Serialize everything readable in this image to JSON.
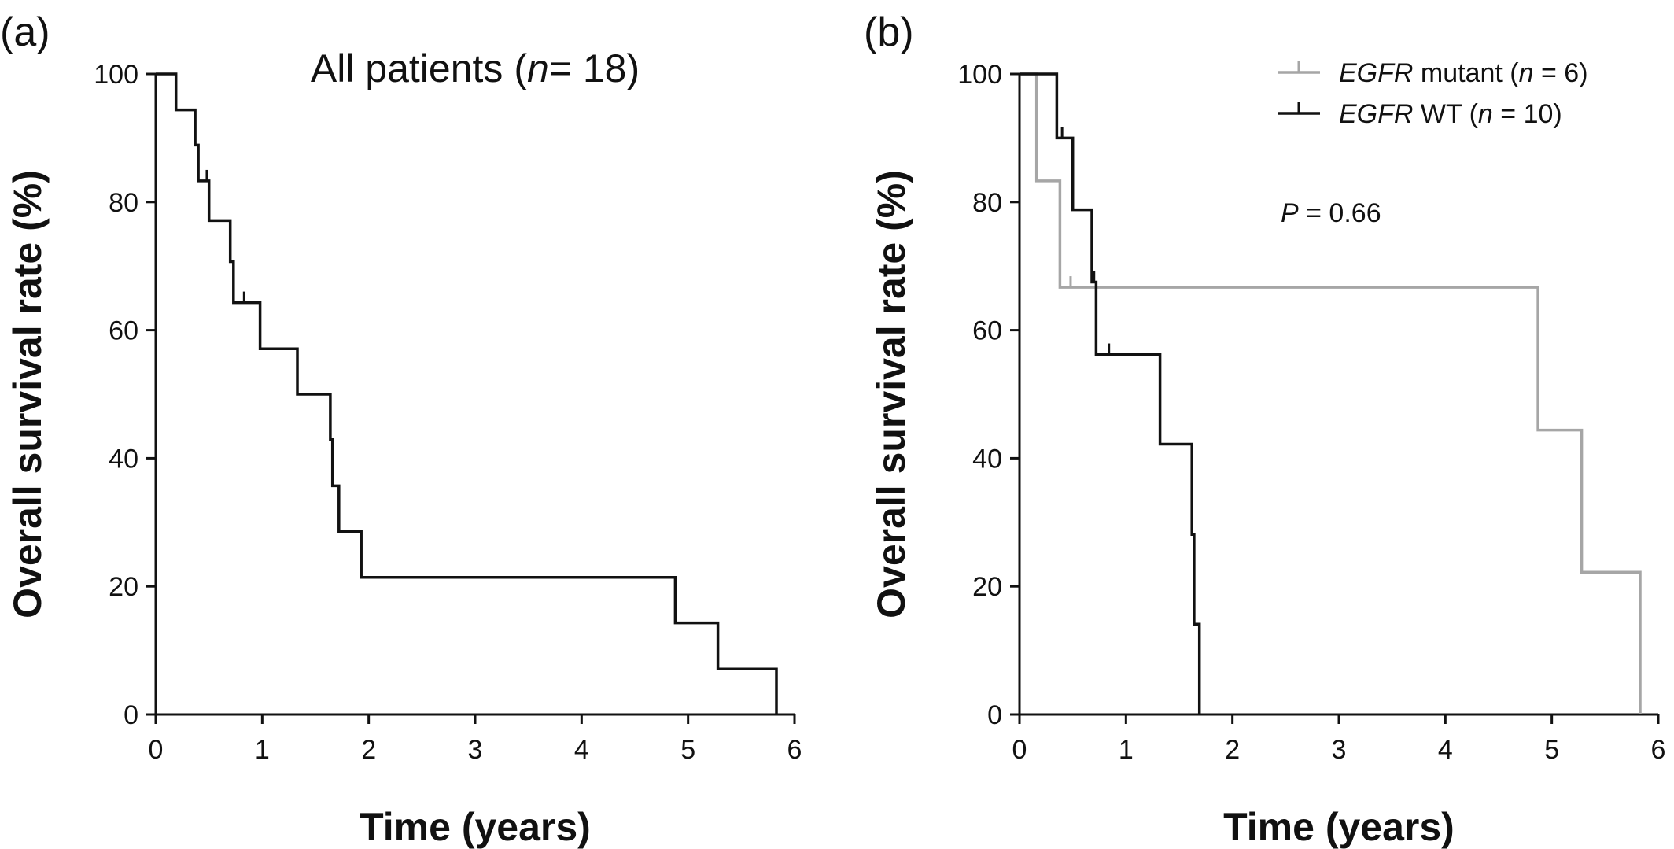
{
  "chart_data": [
    {
      "type": "line",
      "step": true,
      "panel_label": "(a)",
      "annotation": {
        "prefix": "All patients (",
        "italic": "n",
        "suffix": "= 18)"
      },
      "xlabel": "Time (years)",
      "ylabel": "Overall survival rate (%)",
      "xlim": [
        0,
        6
      ],
      "ylim": [
        0,
        100
      ],
      "xticks": [
        0,
        1,
        2,
        3,
        4,
        5,
        6
      ],
      "yticks": [
        0,
        20,
        40,
        60,
        80,
        100
      ],
      "grid": false,
      "series": [
        {
          "color": "#111111",
          "points": [
            [
              0,
              100
            ],
            [
              0.19,
              100
            ],
            [
              0.19,
              94.4
            ],
            [
              0.37,
              94.4
            ],
            [
              0.37,
              88.9
            ],
            [
              0.4,
              88.9
            ],
            [
              0.4,
              83.3
            ],
            [
              0.5,
              83.3
            ],
            [
              0.5,
              77.1
            ],
            [
              0.7,
              77.1
            ],
            [
              0.7,
              70.7
            ],
            [
              0.73,
              70.7
            ],
            [
              0.73,
              64.3
            ],
            [
              0.98,
              64.3
            ],
            [
              0.98,
              57.1
            ],
            [
              1.33,
              57.1
            ],
            [
              1.33,
              50.0
            ],
            [
              1.64,
              50.0
            ],
            [
              1.64,
              42.9
            ],
            [
              1.66,
              42.9
            ],
            [
              1.66,
              35.7
            ],
            [
              1.72,
              35.7
            ],
            [
              1.72,
              28.6
            ],
            [
              1.93,
              28.6
            ],
            [
              1.93,
              21.4
            ],
            [
              4.88,
              21.4
            ],
            [
              4.88,
              14.3
            ],
            [
              5.28,
              14.3
            ],
            [
              5.28,
              7.1
            ],
            [
              5.83,
              7.1
            ],
            [
              5.83,
              0
            ]
          ],
          "censored": [
            [
              0.48,
              83.3
            ],
            [
              0.83,
              64.3
            ]
          ]
        }
      ]
    },
    {
      "type": "line",
      "step": true,
      "panel_label": "(b)",
      "annotation": {
        "prefix": "",
        "italic": "P",
        "suffix": " = 0.66"
      },
      "xlabel": "Time (years)",
      "ylabel": "Overall survival rate (%)",
      "xlim": [
        0,
        6
      ],
      "ylim": [
        0,
        100
      ],
      "xticks": [
        0,
        1,
        2,
        3,
        4,
        5,
        6
      ],
      "yticks": [
        0,
        20,
        40,
        60,
        80,
        100
      ],
      "grid": false,
      "legend_position": "top-right",
      "series": [
        {
          "name": "EGFR mutant (n = 6)",
          "legend": {
            "italic": "EGFR",
            "rest": " mutant (",
            "n": "n",
            "tail": " = 6)"
          },
          "color": "#a6a6a6",
          "points": [
            [
              0,
              100
            ],
            [
              0.16,
              100
            ],
            [
              0.16,
              83.3
            ],
            [
              0.38,
              83.3
            ],
            [
              0.38,
              66.7
            ],
            [
              4.87,
              66.7
            ],
            [
              4.87,
              44.4
            ],
            [
              5.28,
              44.4
            ],
            [
              5.28,
              22.2
            ],
            [
              5.83,
              22.2
            ],
            [
              5.83,
              0
            ]
          ],
          "censored": [
            [
              0.48,
              66.7
            ]
          ]
        },
        {
          "name": "EGFR WT (n = 10)",
          "legend": {
            "italic": "EGFR",
            "rest": " WT (",
            "n": "n",
            "tail": " = 10)"
          },
          "color": "#111111",
          "points": [
            [
              0,
              100
            ],
            [
              0.35,
              100
            ],
            [
              0.35,
              90.0
            ],
            [
              0.5,
              90.0
            ],
            [
              0.5,
              78.8
            ],
            [
              0.68,
              78.8
            ],
            [
              0.68,
              67.5
            ],
            [
              0.72,
              67.5
            ],
            [
              0.72,
              56.2
            ],
            [
              1.32,
              56.2
            ],
            [
              1.32,
              42.2
            ],
            [
              1.62,
              42.2
            ],
            [
              1.62,
              28.1
            ],
            [
              1.64,
              28.1
            ],
            [
              1.64,
              14.1
            ],
            [
              1.69,
              14.1
            ],
            [
              1.69,
              0
            ]
          ],
          "censored": [
            [
              0.4,
              90.0
            ],
            [
              0.7,
              67.5
            ],
            [
              0.84,
              56.2
            ]
          ]
        }
      ]
    }
  ]
}
